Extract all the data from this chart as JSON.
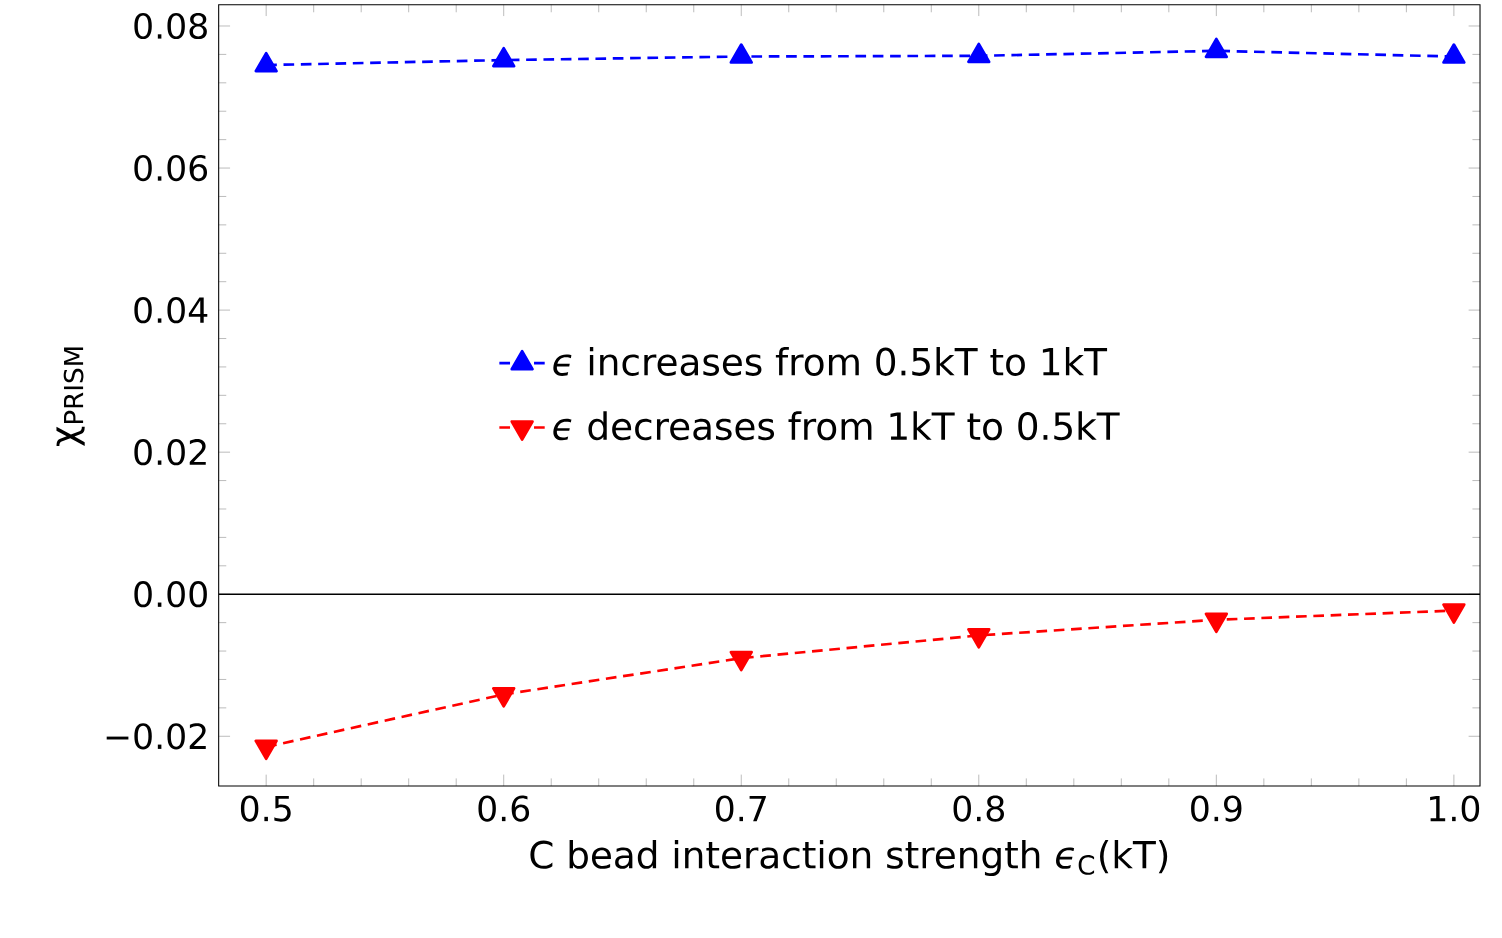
{
  "chart_data": {
    "type": "line",
    "xlabel": "C bead interaction strength *ϵ*$_{C}$(kT)",
    "ylabel": "χ$_{PRISM}$",
    "x": [
      0.5,
      0.6,
      0.7,
      0.8,
      0.9,
      1.0
    ],
    "series": [
      {
        "name": "*ϵ* increases from 0.5kT to 1kT",
        "color": "#0000ff",
        "marker": "triangle",
        "values": [
          0.0745,
          0.0752,
          0.0757,
          0.0758,
          0.0765,
          0.0757
        ]
      },
      {
        "name": "*ϵ* decreases from 1kT to 0.5kT",
        "color": "#ff0000",
        "marker": "triangle-down",
        "values": [
          -0.0215,
          -0.0141,
          -0.009,
          -0.0058,
          -0.0036,
          -0.0023
        ]
      }
    ],
    "line_style": "dashed",
    "legend": "center",
    "grid": false,
    "xlim": [
      0.48,
      1.011
    ],
    "ylim": [
      -0.027,
      0.083
    ],
    "xticks": [
      0.5,
      0.6,
      0.7,
      0.8,
      0.9,
      {
        "value": 1.0,
        "label": "1.0"
      }
    ],
    "yticks": [
      {
        "value": -0.02,
        "label": "−0.02"
      },
      {
        "value": 0,
        "label": "0.00"
      },
      0.02,
      0.04,
      0.06,
      0.08
    ],
    "ref_lines": [
      {
        "axis": "y",
        "value": 0,
        "color": "#000000"
      }
    ]
  }
}
